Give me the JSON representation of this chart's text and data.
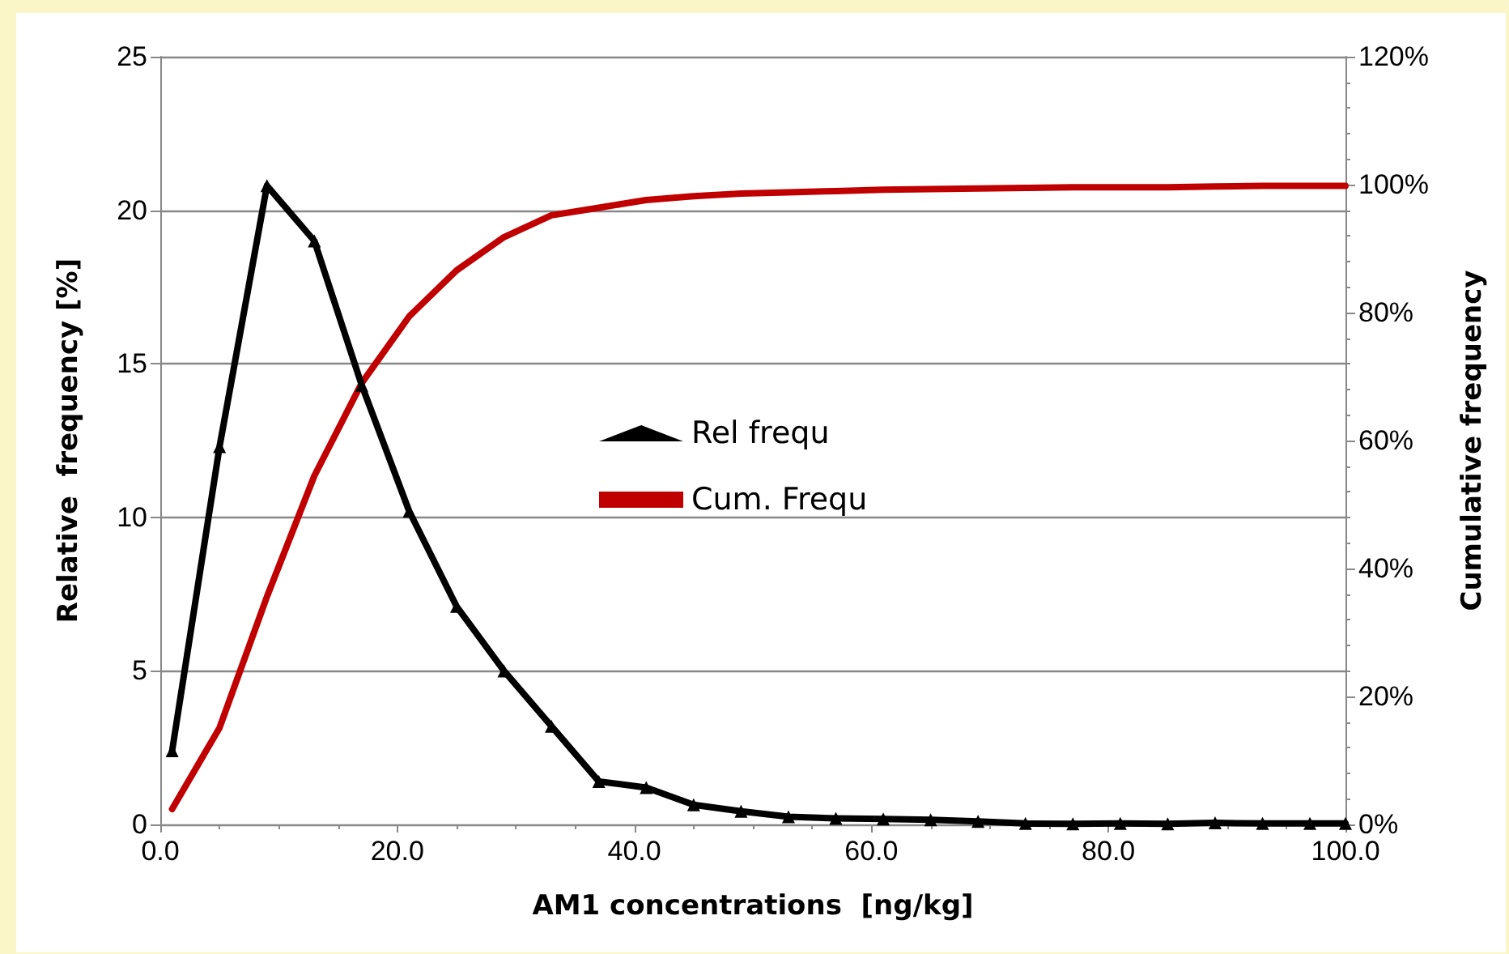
{
  "chart_data": {
    "type": "line",
    "xlabel": "AM1 concentrations  [ng/kg]",
    "ylabel": "Relative  frequency [%]",
    "y2label": "Cumulative frequency",
    "x": [
      1,
      5,
      9,
      13,
      17,
      21,
      25,
      29,
      33,
      37,
      41,
      45,
      49,
      53,
      57,
      61,
      65,
      69,
      73,
      77,
      81,
      85,
      89,
      93,
      97,
      100
    ],
    "series": [
      {
        "name": "Rel frequ",
        "color": "#000000",
        "marker": "triangle",
        "values": [
          2.4,
          12.3,
          20.8,
          19.0,
          14.3,
          10.2,
          7.1,
          5.0,
          3.2,
          1.4,
          1.2,
          0.64,
          0.43,
          0.25,
          0.2,
          0.18,
          0.15,
          0.1,
          0.03,
          0.02,
          0.03,
          0.02,
          0.05,
          0.03,
          0.03,
          0.03
        ]
      },
      {
        "name": "Cum. Frequ",
        "color": "#c00000",
        "marker": "none",
        "axis": "y2",
        "values": [
          2.4,
          15.1,
          35.6,
          54.5,
          69,
          79.4,
          86.6,
          91.8,
          95.2,
          96.4,
          97.6,
          98.2,
          98.6,
          98.8,
          99.0,
          99.2,
          99.3,
          99.4,
          99.5,
          99.6,
          99.6,
          99.6,
          99.7,
          99.8,
          99.8,
          99.8
        ]
      }
    ],
    "xlim": [
      0,
      100
    ],
    "xticks": [
      {
        "value": 0,
        "label": "0.0"
      },
      {
        "value": 20,
        "label": "20.0"
      },
      {
        "value": 40,
        "label": "40.0"
      },
      {
        "value": 60,
        "label": "60.0"
      },
      {
        "value": 80,
        "label": "80.0"
      },
      {
        "value": 100,
        "label": "100.0"
      }
    ],
    "ylim": [
      0,
      25
    ],
    "yticks": [
      0,
      5,
      10,
      15,
      20,
      25
    ],
    "y2lim": [
      0,
      120
    ],
    "y2ticks": [
      {
        "value": 0,
        "label": "0%"
      },
      {
        "value": 20,
        "label": "20%"
      },
      {
        "value": 40,
        "label": "40%"
      },
      {
        "value": 60,
        "label": "60%"
      },
      {
        "value": 80,
        "label": "80%"
      },
      {
        "value": 100,
        "label": "100%"
      },
      {
        "value": 120,
        "label": "120%"
      }
    ],
    "grid": "y",
    "legend": "center",
    "line_style": "solid"
  }
}
